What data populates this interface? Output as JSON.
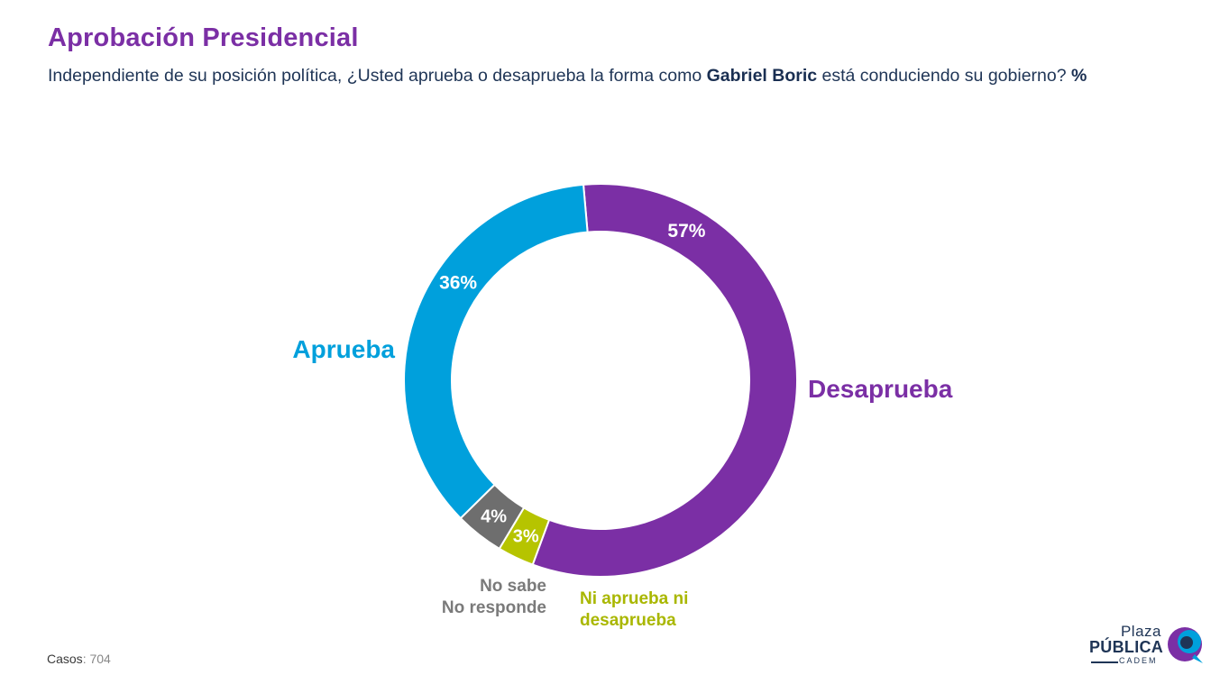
{
  "header": {
    "title": "Aprobación Presidencial",
    "subtitle_pre": "Independiente de su posición política, ¿Usted aprueba o desaprueba la forma como ",
    "subtitle_name": "Gabriel Boric",
    "subtitle_post": " está conduciendo su gobierno? ",
    "subtitle_unit": "%"
  },
  "chart_data": {
    "type": "pie",
    "donut": true,
    "categories": [
      "Desaprueba",
      "Ni aprueba ni desaprueba",
      "No sabe No responde",
      "Aprueba"
    ],
    "values": [
      57,
      3,
      4,
      36
    ],
    "value_labels": [
      "57%",
      "3%",
      "4%",
      "36%"
    ],
    "colors": [
      "#7b2fa5",
      "#b6c400",
      "#6e6e6e",
      "#00a0dc"
    ],
    "start": "12 o'clock, clockwise"
  },
  "labels": {
    "aprueba": "Aprueba",
    "desaprueba": "Desaprueba",
    "ns_line1": "No sabe",
    "ns_line2": "No responde",
    "ni_line1": "Ni aprueba ni",
    "ni_line2": "desaprueba"
  },
  "footer": {
    "casos_label": "Casos",
    "casos_value": ": 704"
  },
  "logo": {
    "line1": "Plaza",
    "line2": "PÚBLICA",
    "line3": "CADEM",
    "accent_colors": [
      "#7b2fa5",
      "#00a0dc",
      "#1f3556"
    ]
  }
}
